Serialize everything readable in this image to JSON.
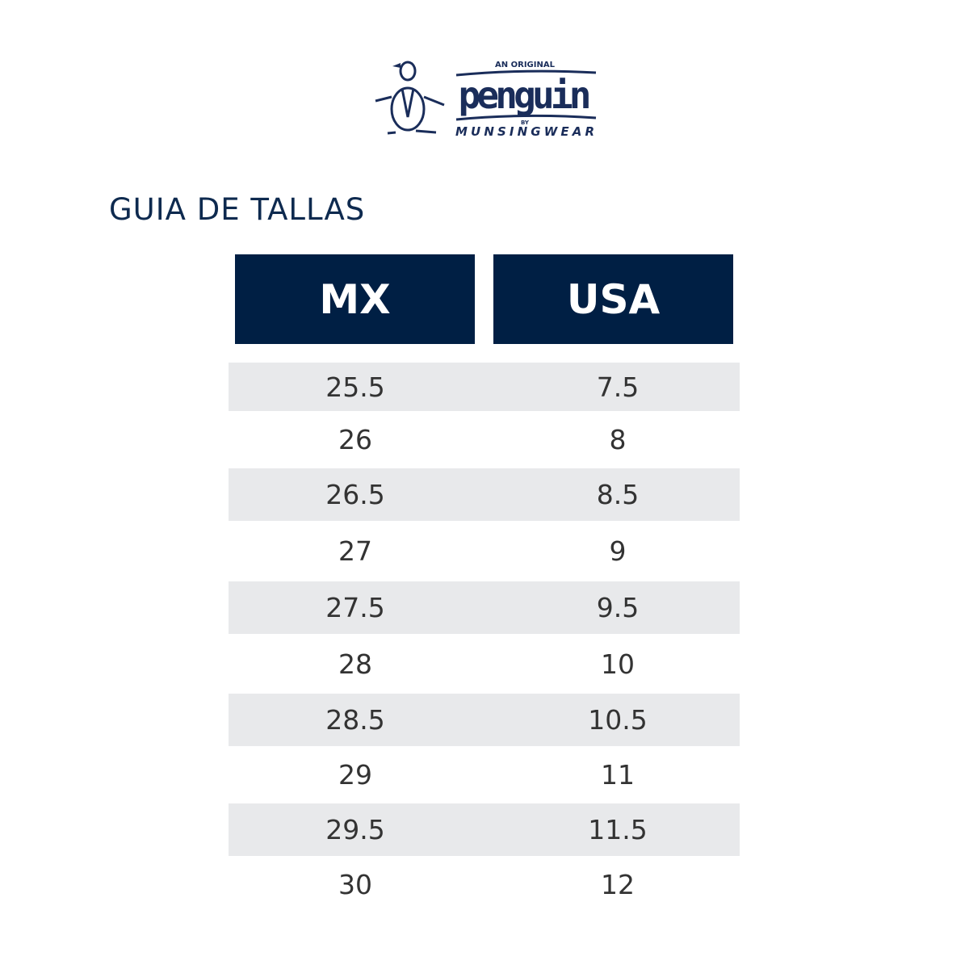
{
  "logo": {
    "top_text": "AN ORIGINAL",
    "brand": "penguin",
    "by": "BY",
    "maker": "MUNSINGWEAR",
    "color": "#1a2d5a"
  },
  "title": "GUIA DE TALLAS",
  "table": {
    "headers": [
      "MX",
      "USA"
    ],
    "header_color": "#001f44",
    "stripe_color": "#e8e9eb",
    "rows": [
      [
        "25.5",
        "7.5"
      ],
      [
        "26",
        "8"
      ],
      [
        "26.5",
        "8.5"
      ],
      [
        "27",
        "9"
      ],
      [
        "27.5",
        "9.5"
      ],
      [
        "28",
        "10"
      ],
      [
        "28.5",
        "10.5"
      ],
      [
        "29",
        "11"
      ],
      [
        "29.5",
        "11.5"
      ],
      [
        "30",
        "12"
      ]
    ]
  }
}
